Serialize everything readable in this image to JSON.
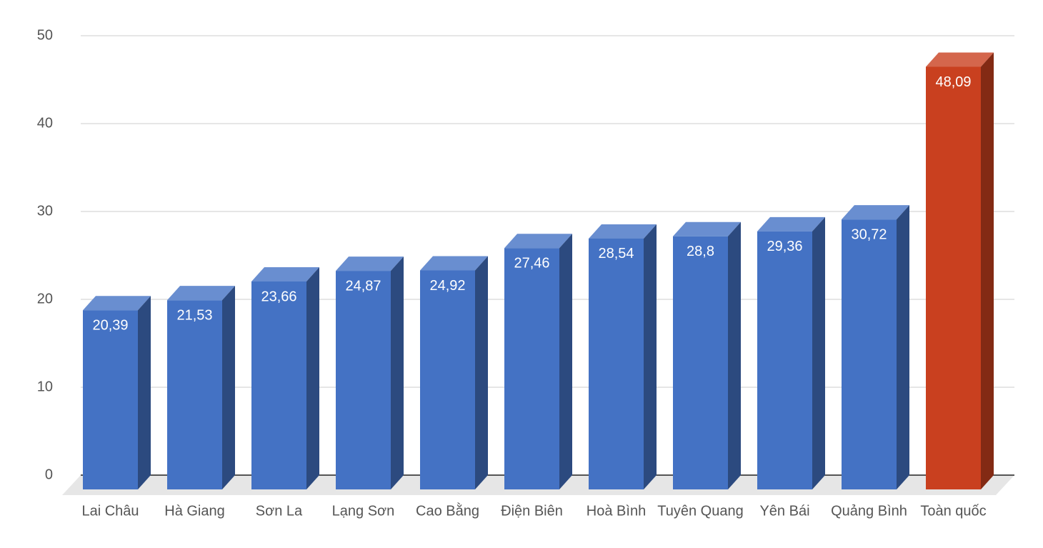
{
  "chart_data": {
    "type": "bar3d",
    "categories": [
      "Lai Châu",
      "Hà Giang",
      "Sơn La",
      "Lạng Sơn",
      "Cao Bằng",
      "Điện Biên",
      "Hoà Bình",
      "Tuyên Quang",
      "Yên Bái",
      "Quảng Bình",
      "Toàn quốc"
    ],
    "values": [
      20.39,
      21.53,
      23.66,
      24.87,
      24.92,
      27.46,
      28.54,
      28.8,
      29.36,
      30.72,
      48.09
    ],
    "value_labels": [
      "20,39",
      "21,53",
      "23,66",
      "24,87",
      "24,92",
      "27,46",
      "28,54",
      "28,8",
      "29,36",
      "30,72",
      "48,09"
    ],
    "colors": [
      "#4472c4",
      "#4472c4",
      "#4472c4",
      "#4472c4",
      "#4472c4",
      "#4472c4",
      "#4472c4",
      "#4472c4",
      "#4472c4",
      "#4472c4",
      "#c9401f"
    ],
    "ylim": [
      0,
      50
    ],
    "yticks": [
      0,
      10,
      20,
      30,
      40,
      50
    ],
    "grid": true
  }
}
